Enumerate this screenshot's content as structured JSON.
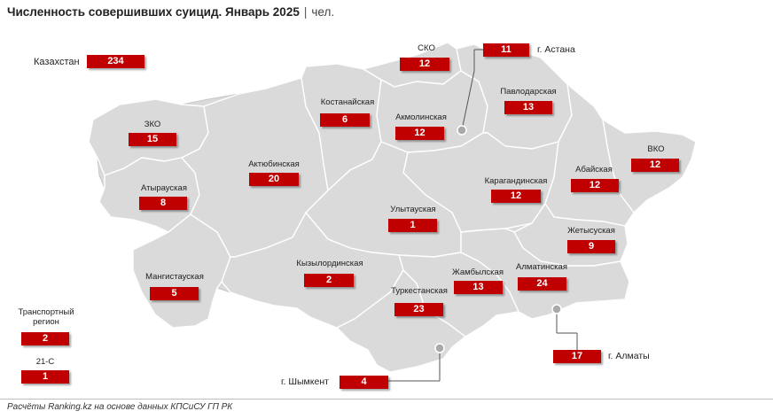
{
  "title": {
    "main": "Численность совершивших суицид. Январь 2025",
    "separator": "|",
    "unit": "чел."
  },
  "source": "Расчёты Ranking.kz на основе данных КПСиСУ ГП РК",
  "colors": {
    "map_fill": "#dadada",
    "region_border": "#ffffff",
    "value_box": "#c00000",
    "value_text": "#ffffff",
    "marker": "#a9a9a9"
  },
  "total": {
    "label": "Казахстан",
    "value": "234"
  },
  "regions": [
    {
      "id": "sko",
      "label": "СКО",
      "value": "12"
    },
    {
      "id": "astana",
      "label": "г. Астана",
      "value": "11"
    },
    {
      "id": "pavlodar",
      "label": "Павлодарская",
      "value": "13"
    },
    {
      "id": "kostanay",
      "label": "Костанайская",
      "value": "6"
    },
    {
      "id": "akmola",
      "label": "Акмолинская",
      "value": "12"
    },
    {
      "id": "zko",
      "label": "ЗКО",
      "value": "15"
    },
    {
      "id": "aktobe",
      "label": "Актюбинская",
      "value": "20"
    },
    {
      "id": "vko",
      "label": "ВКО",
      "value": "12"
    },
    {
      "id": "abay",
      "label": "Абайская",
      "value": "12"
    },
    {
      "id": "karaganda",
      "label": "Карагандинская",
      "value": "12"
    },
    {
      "id": "atyrau",
      "label": "Атырауская",
      "value": "8"
    },
    {
      "id": "ulytau",
      "label": "Улытауская",
      "value": "1"
    },
    {
      "id": "zhetysu",
      "label": "Жетысуская",
      "value": "9"
    },
    {
      "id": "mangystau",
      "label": "Мангистауская",
      "value": "5"
    },
    {
      "id": "kyzylorda",
      "label": "Кызылординская",
      "value": "2"
    },
    {
      "id": "zhambyl",
      "label": "Жамбылская",
      "value": "13"
    },
    {
      "id": "almaty_obl",
      "label": "Алматинская",
      "value": "24"
    },
    {
      "id": "turkestan",
      "label": "Туркестанская",
      "value": "23"
    },
    {
      "id": "almaty_city",
      "label": "г. Алматы",
      "value": "17"
    },
    {
      "id": "shymkent",
      "label": "г. Шымкент",
      "value": "4"
    },
    {
      "id": "transport",
      "label": "Транспортный регион",
      "value": "2"
    },
    {
      "id": "21s",
      "label": "21-С",
      "value": "1"
    }
  ]
}
